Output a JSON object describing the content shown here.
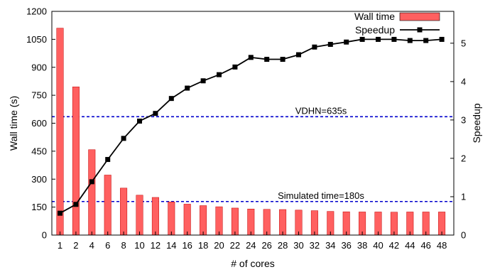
{
  "chart_data": {
    "type": "bar",
    "xlabel": "# of cores",
    "ylabel": "Wall time (s)",
    "y2label": "Speedup",
    "categories": [
      "1",
      "2",
      "4",
      "6",
      "8",
      "10",
      "12",
      "14",
      "16",
      "18",
      "20",
      "22",
      "24",
      "26",
      "28",
      "30",
      "32",
      "34",
      "36",
      "38",
      "40",
      "42",
      "44",
      "46",
      "48"
    ],
    "ylim": [
      0,
      1200
    ],
    "yticks": [
      "0",
      "150",
      "300",
      "450",
      "600",
      "750",
      "900",
      "1050",
      "1200"
    ],
    "y2lim": [
      0,
      5.83
    ],
    "y2ticks": [
      "0",
      "1",
      "2",
      "3",
      "4",
      "5"
    ],
    "series": [
      {
        "name": "Wall time",
        "type": "bar",
        "axis": "left",
        "color": "#ff6060",
        "values": [
          1110,
          795,
          458,
          322,
          252,
          214,
          202,
          178,
          166,
          158,
          152,
          145,
          140,
          138,
          137,
          134,
          131,
          127,
          125,
          124,
          124,
          123,
          124,
          124,
          124
        ]
      },
      {
        "name": "Speedup",
        "type": "line",
        "axis": "right",
        "color": "#000000",
        "values": [
          0.57,
          0.8,
          1.39,
          1.97,
          2.52,
          2.97,
          3.17,
          3.56,
          3.83,
          4.02,
          4.18,
          4.38,
          4.63,
          4.58,
          4.58,
          4.7,
          4.9,
          4.97,
          5.03,
          5.1,
          5.1,
          5.1,
          5.07,
          5.07,
          5.1
        ]
      }
    ],
    "reference_lines": [
      {
        "value": 635,
        "label": "VDHN=635s",
        "color": "#0000cc"
      },
      {
        "value": 180,
        "label": "Simulated time=180s",
        "color": "#0000cc"
      }
    ],
    "legend_position": "top-right",
    "grid": false
  }
}
